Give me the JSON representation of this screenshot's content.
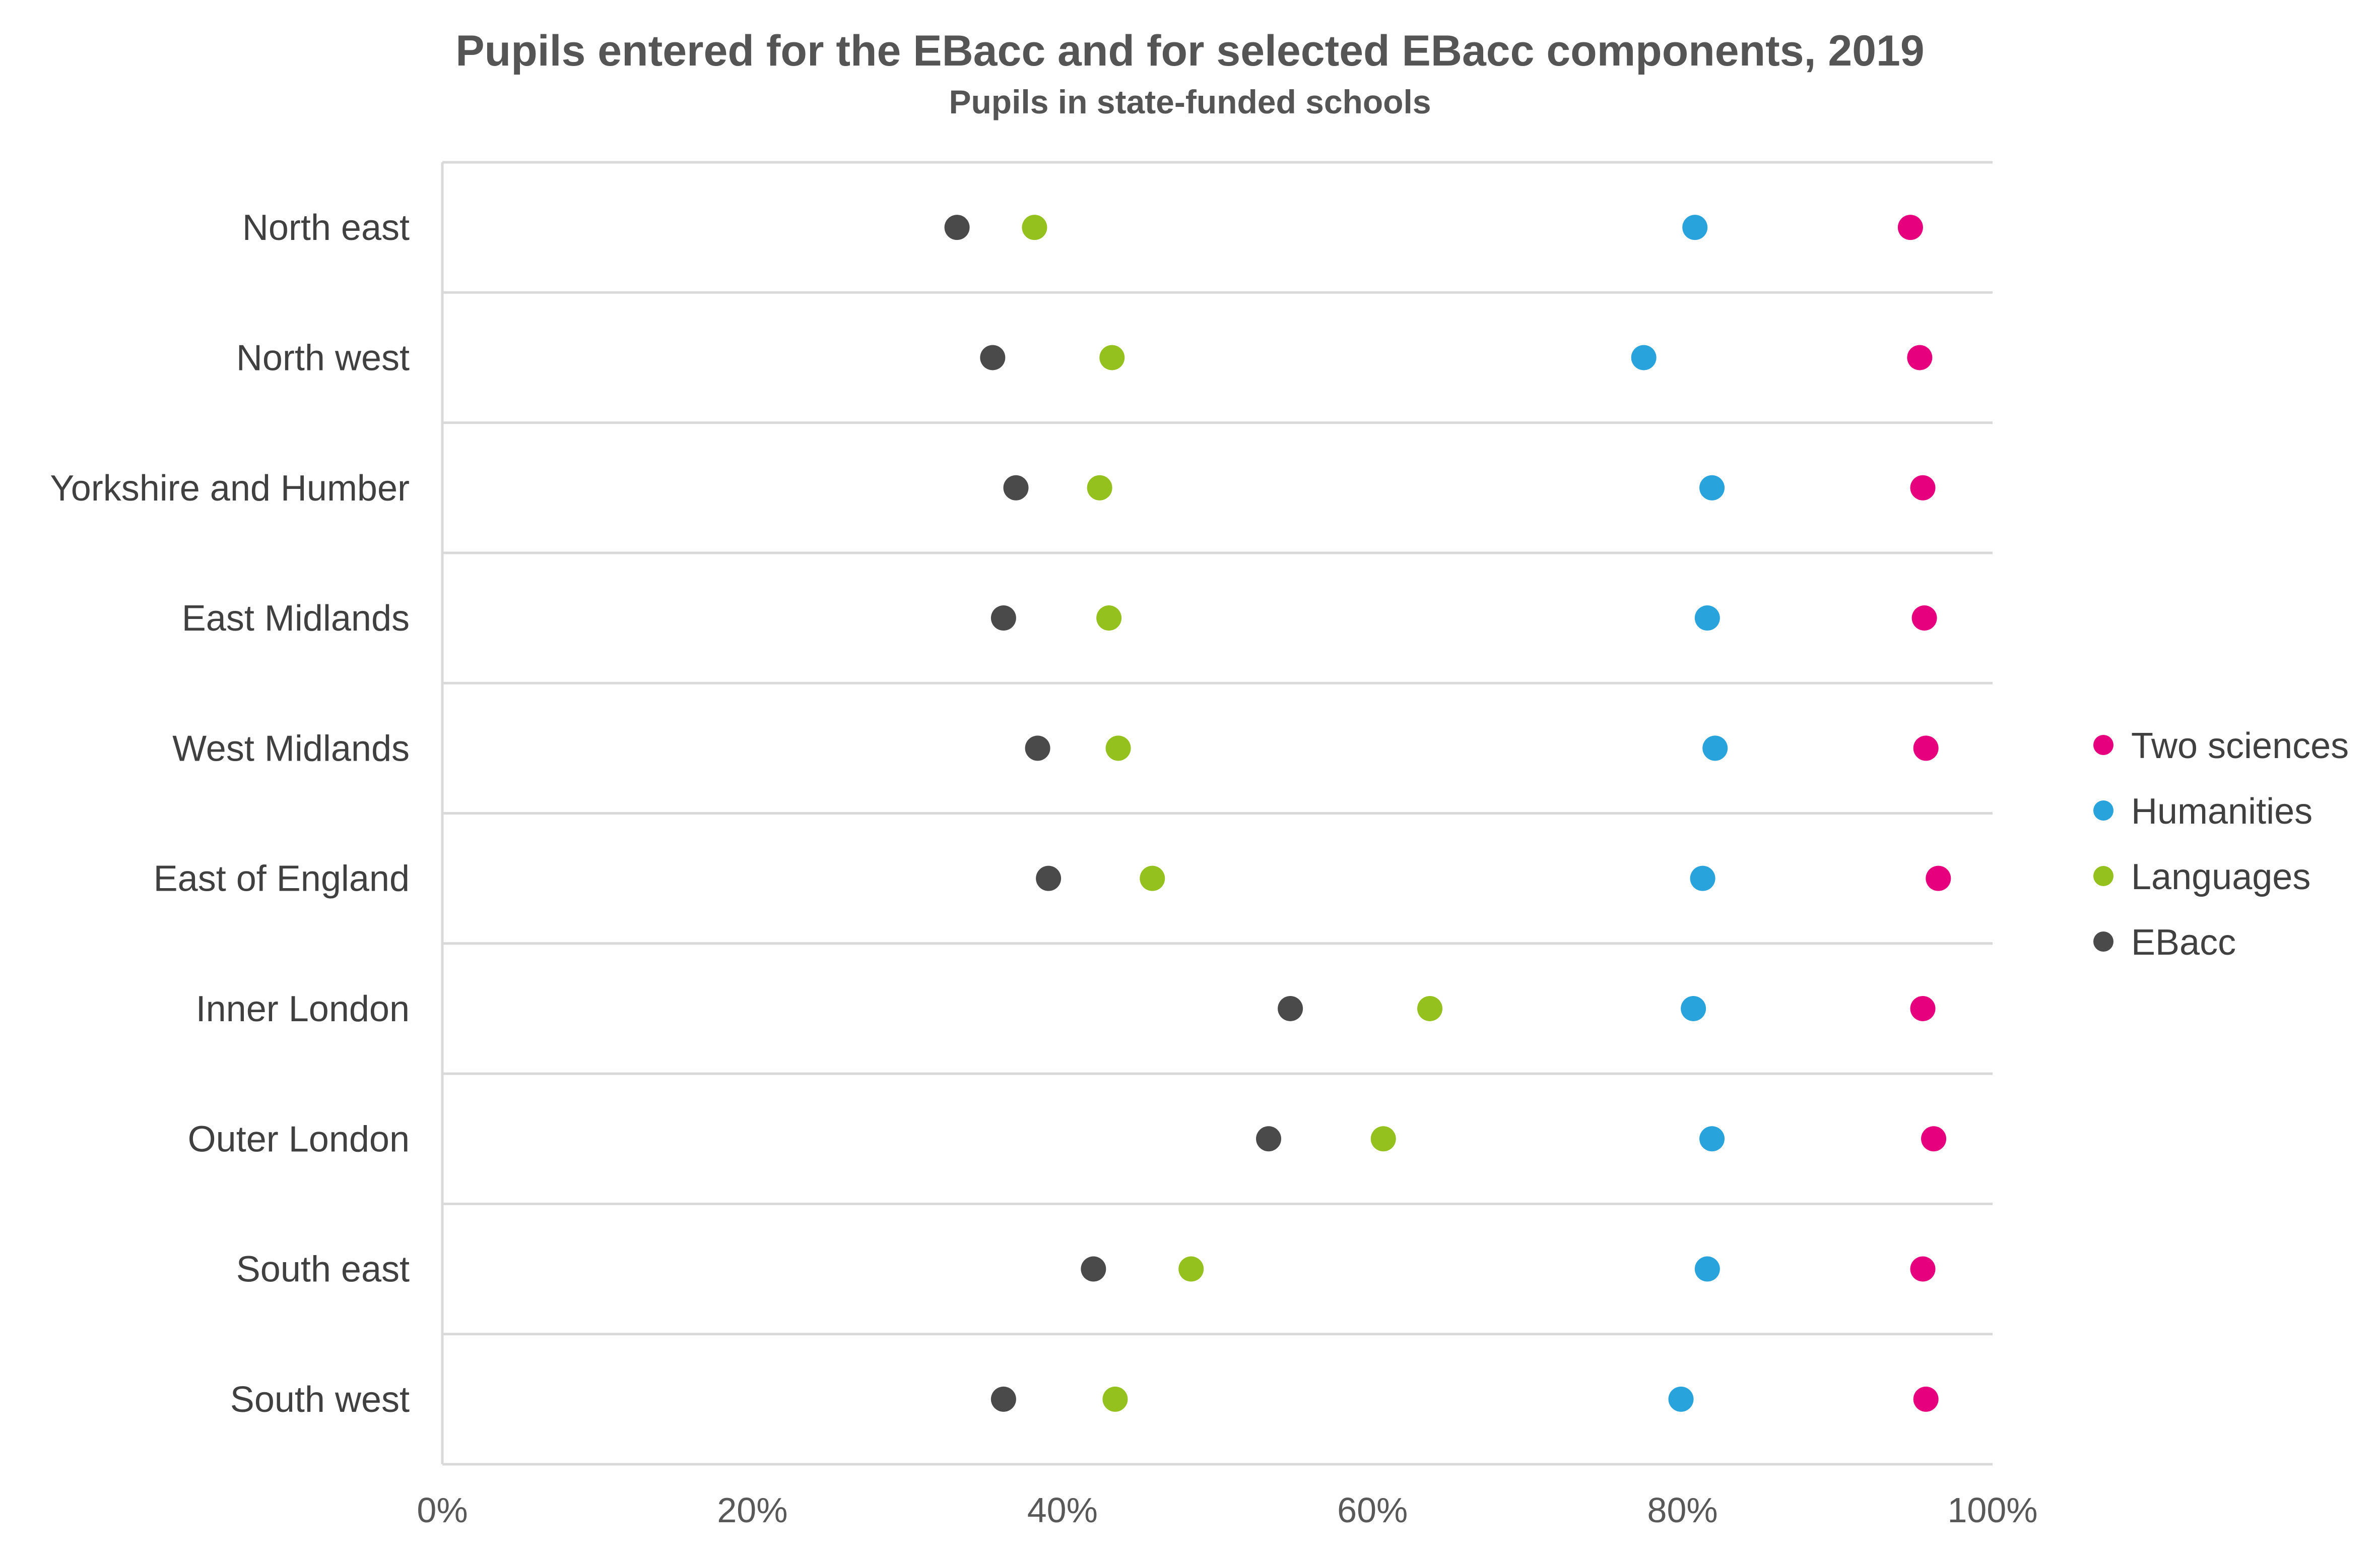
{
  "chart_data": {
    "type": "scatter",
    "title": "Pupils entered for the EBacc and for selected EBacc components, 2019",
    "subtitle": "Pupils in state-funded schools",
    "categories": [
      "North east",
      "North west",
      "Yorkshire and Humber",
      "East Midlands",
      "West Midlands",
      "East of England",
      "Inner London",
      "Outer London",
      "South east",
      "South west"
    ],
    "xlim": [
      0,
      100
    ],
    "x_ticks": [
      "0%",
      "20%",
      "40%",
      "60%",
      "80%",
      "100%"
    ],
    "x_tick_values": [
      0,
      20,
      40,
      60,
      80,
      100
    ],
    "grid": true,
    "legend_position": "right",
    "series": [
      {
        "name": "Two sciences",
        "color": "#e6007e",
        "values": [
          94.7,
          95.3,
          95.5,
          95.6,
          95.7,
          96.5,
          95.5,
          96.2,
          95.5,
          95.7
        ]
      },
      {
        "name": "Humanities",
        "color": "#29a3dc",
        "values": [
          80.8,
          77.5,
          81.9,
          81.6,
          82.1,
          81.3,
          80.7,
          81.9,
          81.6,
          79.9
        ]
      },
      {
        "name": "Languages",
        "color": "#95c11f",
        "values": [
          38.2,
          43.2,
          42.4,
          43.0,
          43.6,
          45.8,
          63.7,
          60.7,
          48.3,
          43.4
        ]
      },
      {
        "name": "EBacc",
        "color": "#4a4a4a",
        "values": [
          33.2,
          35.5,
          37.0,
          36.2,
          38.4,
          39.1,
          54.7,
          53.3,
          42.0,
          36.2
        ]
      }
    ],
    "legend_order": [
      "Two sciences",
      "Humanities",
      "Languages",
      "EBacc"
    ]
  }
}
